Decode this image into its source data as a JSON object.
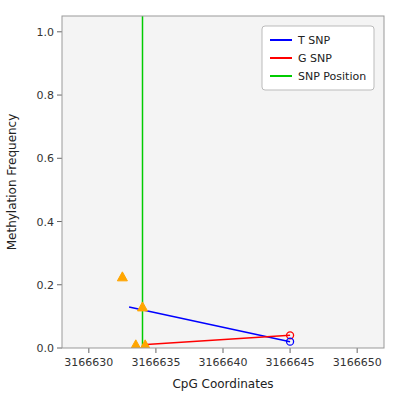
{
  "chart_data": {
    "type": "line",
    "xlabel": "CpG Coordinates",
    "ylabel": "Methylation Frequency",
    "xlim": [
      3166628,
      3166652
    ],
    "ylim": [
      0.0,
      1.05
    ],
    "xticks": [
      3166630,
      3166635,
      3166640,
      3166645,
      3166650
    ],
    "yticks": [
      {
        "value": 0.0,
        "label": "0.0"
      },
      0.2,
      0.4,
      0.6,
      0.8,
      {
        "value": 1.0,
        "label": "1.0"
      }
    ],
    "grid": false,
    "legend": "upper right",
    "series": [
      {
        "name": "T SNP",
        "type": "line",
        "color": "#0000ff",
        "x": [
          3166633,
          3166645
        ],
        "values": [
          0.13,
          0.02
        ]
      },
      {
        "name": "G SNP",
        "type": "line",
        "color": "#ff0000",
        "x": [
          3166634,
          3166645
        ],
        "values": [
          0.01,
          0.04
        ]
      },
      {
        "name": "SNP Position",
        "type": "vline",
        "color": "#00cc00",
        "x": [
          3166634
        ]
      },
      {
        "type": "scatter",
        "marker": "triangle",
        "color": "#FFA500",
        "x": [
          3166632.5,
          3166633.5,
          3166634.0,
          3166634.2
        ],
        "values": [
          0.225,
          0.01,
          0.13,
          0.01
        ]
      },
      {
        "type": "scatter",
        "marker": "open-circle",
        "color": "#ff0000",
        "x": [
          3166645
        ],
        "values": [
          0.04
        ]
      },
      {
        "type": "scatter",
        "marker": "open-circle",
        "color": "#0000ff",
        "x": [
          3166645
        ],
        "values": [
          0.02
        ]
      }
    ]
  }
}
